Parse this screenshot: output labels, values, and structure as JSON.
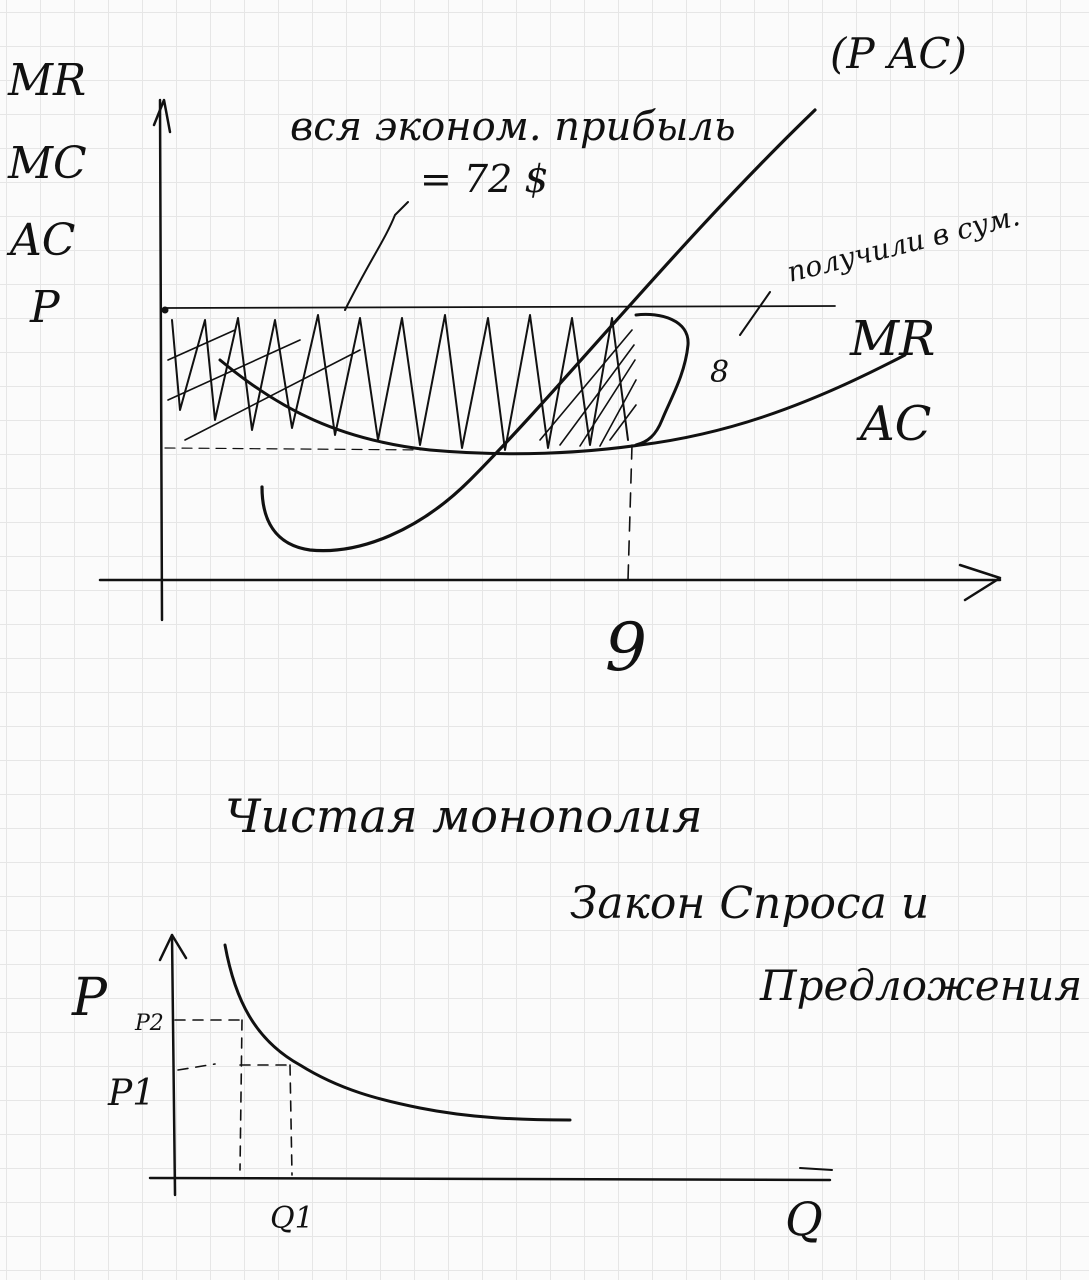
{
  "top_graph": {
    "y_axis_labels": [
      "MR",
      "MC",
      "AC",
      "P"
    ],
    "annotation_profit": "вся эконом. прибыль",
    "annotation_profit_value": "= 72 $",
    "annotation_pac": "(P AC)",
    "annotation_received": "получили в сум.",
    "bracket_value": "8",
    "curve_label_mr": "MR",
    "curve_label_ac": "AC",
    "x_value": "9"
  },
  "headings": {
    "title": "Чистая монополия",
    "subtitle_line1": "Закон Спроса и",
    "subtitle_line2": "Предложения"
  },
  "bottom_graph": {
    "y_axis_label": "P",
    "p2_label": "P2",
    "p1_label": "P1",
    "q1_label": "Q1",
    "x_axis_label": "Q"
  }
}
